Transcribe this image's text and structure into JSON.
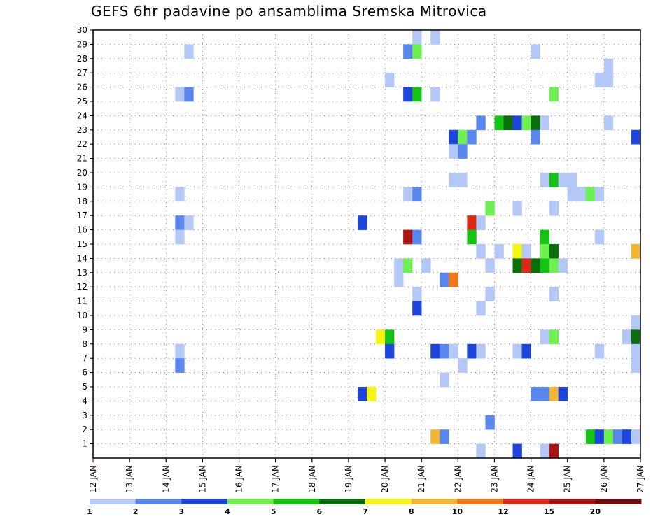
{
  "chart_data": {
    "type": "heatmap",
    "title": "GEFS 6hr padavine po ansamblima Sremska Mitrovica",
    "x_ticks": [
      "12 JAN",
      "13 JAN",
      "14 JAN",
      "15 JAN",
      "16 JAN",
      "17 JAN",
      "18 JAN",
      "19 JAN",
      "20 JAN",
      "21 JAN",
      "22 JAN",
      "23 JAN",
      "24 JAN",
      "25 JAN",
      "26 JAN",
      "27 JAN"
    ],
    "y_ticks": [
      "1",
      "2",
      "3",
      "4",
      "5",
      "6",
      "7",
      "8",
      "9",
      "10",
      "11",
      "12",
      "13",
      "14",
      "15",
      "16",
      "17",
      "18",
      "19",
      "20",
      "21",
      "22",
      "23",
      "24",
      "25",
      "26",
      "27",
      "28",
      "29",
      "30"
    ],
    "xlim": [
      "12 JAN",
      "27 JAN"
    ],
    "ylim": [
      0,
      30
    ],
    "time_step_hours": 6,
    "grid": true,
    "colorbar": {
      "placement": "bottom",
      "labels": [
        "1",
        "2",
        "3",
        "4",
        "5",
        "6",
        "7",
        "8",
        "10",
        "12",
        "15",
        "20"
      ],
      "colors": [
        "#b4c8f8",
        "#5a87ee",
        "#1e46dc",
        "#6ef050",
        "#14c314",
        "#0a6e0a",
        "#f5f514",
        "#f5b432",
        "#f07814",
        "#dc2814",
        "#aa1414",
        "#6e0a0a"
      ]
    },
    "cells": [
      {
        "day": 20.75,
        "member": 30,
        "level": 1
      },
      {
        "day": 21.25,
        "member": 30,
        "level": 1
      },
      {
        "day": 14.5,
        "member": 29,
        "level": 1
      },
      {
        "day": 20.5,
        "member": 29,
        "level": 2
      },
      {
        "day": 20.75,
        "member": 29,
        "level": 4
      },
      {
        "day": 24,
        "member": 29,
        "level": 1
      },
      {
        "day": 26,
        "member": 28,
        "level": 1
      },
      {
        "day": 20,
        "member": 27,
        "level": 1
      },
      {
        "day": 25.75,
        "member": 27,
        "level": 1
      },
      {
        "day": 26,
        "member": 27,
        "level": 1
      },
      {
        "day": 14.25,
        "member": 26,
        "level": 1
      },
      {
        "day": 14.5,
        "member": 26,
        "level": 2
      },
      {
        "day": 20.5,
        "member": 26,
        "level": 3
      },
      {
        "day": 20.75,
        "member": 26,
        "level": 5
      },
      {
        "day": 21.25,
        "member": 26,
        "level": 1
      },
      {
        "day": 24.5,
        "member": 26,
        "level": 4
      },
      {
        "day": 22.5,
        "member": 24,
        "level": 2
      },
      {
        "day": 23,
        "member": 24,
        "level": 5
      },
      {
        "day": 23.25,
        "member": 24,
        "level": 6
      },
      {
        "day": 23.5,
        "member": 24,
        "level": 3
      },
      {
        "day": 23.75,
        "member": 24,
        "level": 4
      },
      {
        "day": 24,
        "member": 24,
        "level": 6
      },
      {
        "day": 24.25,
        "member": 24,
        "level": 1
      },
      {
        "day": 26,
        "member": 24,
        "level": 1
      },
      {
        "day": 21.75,
        "member": 23,
        "level": 3
      },
      {
        "day": 22,
        "member": 23,
        "level": 4
      },
      {
        "day": 22.25,
        "member": 23,
        "level": 2
      },
      {
        "day": 24,
        "member": 23,
        "level": 2
      },
      {
        "day": 26.75,
        "member": 23,
        "level": 3
      },
      {
        "day": 21.75,
        "member": 22,
        "level": 1
      },
      {
        "day": 22,
        "member": 22,
        "level": 2
      },
      {
        "day": 21.75,
        "member": 20,
        "level": 1
      },
      {
        "day": 22,
        "member": 20,
        "level": 1
      },
      {
        "day": 24.25,
        "member": 20,
        "level": 1
      },
      {
        "day": 24.5,
        "member": 20,
        "level": 5
      },
      {
        "day": 24.75,
        "member": 20,
        "level": 1
      },
      {
        "day": 25,
        "member": 20,
        "level": 1
      },
      {
        "day": 14.25,
        "member": 19,
        "level": 1
      },
      {
        "day": 20.5,
        "member": 19,
        "level": 1
      },
      {
        "day": 20.75,
        "member": 19,
        "level": 2
      },
      {
        "day": 25,
        "member": 19,
        "level": 1
      },
      {
        "day": 25.25,
        "member": 19,
        "level": 1
      },
      {
        "day": 25.5,
        "member": 19,
        "level": 4
      },
      {
        "day": 25.75,
        "member": 19,
        "level": 1
      },
      {
        "day": 22.75,
        "member": 18,
        "level": 4
      },
      {
        "day": 23.5,
        "member": 18,
        "level": 1
      },
      {
        "day": 24.5,
        "member": 18,
        "level": 1
      },
      {
        "day": 14.25,
        "member": 17,
        "level": 2
      },
      {
        "day": 14.5,
        "member": 17,
        "level": 1
      },
      {
        "day": 19.25,
        "member": 17,
        "level": 3
      },
      {
        "day": 22.25,
        "member": 17,
        "level": 10
      },
      {
        "day": 22.5,
        "member": 17,
        "level": 1
      },
      {
        "day": 14.25,
        "member": 16,
        "level": 1
      },
      {
        "day": 20.5,
        "member": 16,
        "level": 11
      },
      {
        "day": 20.75,
        "member": 16,
        "level": 2
      },
      {
        "day": 22.25,
        "member": 16,
        "level": 5
      },
      {
        "day": 24.25,
        "member": 16,
        "level": 5
      },
      {
        "day": 25.75,
        "member": 16,
        "level": 1
      },
      {
        "day": 22.5,
        "member": 15,
        "level": 1
      },
      {
        "day": 23,
        "member": 15,
        "level": 1
      },
      {
        "day": 23.5,
        "member": 15,
        "level": 7
      },
      {
        "day": 23.75,
        "member": 15,
        "level": 1
      },
      {
        "day": 24.25,
        "member": 15,
        "level": 4
      },
      {
        "day": 24.5,
        "member": 15,
        "level": 6
      },
      {
        "day": 26.75,
        "member": 15,
        "level": 8
      },
      {
        "day": 20.25,
        "member": 14,
        "level": 1
      },
      {
        "day": 20.5,
        "member": 14,
        "level": 4
      },
      {
        "day": 21,
        "member": 14,
        "level": 1
      },
      {
        "day": 22.75,
        "member": 14,
        "level": 1
      },
      {
        "day": 23.5,
        "member": 14,
        "level": 6
      },
      {
        "day": 23.75,
        "member": 14,
        "level": 10
      },
      {
        "day": 24,
        "member": 14,
        "level": 6
      },
      {
        "day": 24.25,
        "member": 14,
        "level": 5
      },
      {
        "day": 24.5,
        "member": 14,
        "level": 4
      },
      {
        "day": 24.75,
        "member": 14,
        "level": 1
      },
      {
        "day": 20.25,
        "member": 13,
        "level": 1
      },
      {
        "day": 21.5,
        "member": 13,
        "level": 2
      },
      {
        "day": 21.75,
        "member": 13,
        "level": 9
      },
      {
        "day": 20.75,
        "member": 12,
        "level": 1
      },
      {
        "day": 22.75,
        "member": 12,
        "level": 1
      },
      {
        "day": 24.5,
        "member": 12,
        "level": 1
      },
      {
        "day": 20.75,
        "member": 11,
        "level": 3
      },
      {
        "day": 22.5,
        "member": 11,
        "level": 1
      },
      {
        "day": 26.75,
        "member": 10,
        "level": 1
      },
      {
        "day": 19.75,
        "member": 9,
        "level": 7
      },
      {
        "day": 20,
        "member": 9,
        "level": 5
      },
      {
        "day": 24.25,
        "member": 9,
        "level": 1
      },
      {
        "day": 24.5,
        "member": 9,
        "level": 4
      },
      {
        "day": 26.5,
        "member": 9,
        "level": 1
      },
      {
        "day": 26.75,
        "member": 9,
        "level": 6
      },
      {
        "day": 14.25,
        "member": 8,
        "level": 1
      },
      {
        "day": 20,
        "member": 8,
        "level": 3
      },
      {
        "day": 21.25,
        "member": 8,
        "level": 3
      },
      {
        "day": 21.5,
        "member": 8,
        "level": 2
      },
      {
        "day": 21.75,
        "member": 8,
        "level": 1
      },
      {
        "day": 22.25,
        "member": 8,
        "level": 3
      },
      {
        "day": 22.5,
        "member": 8,
        "level": 1
      },
      {
        "day": 23.5,
        "member": 8,
        "level": 1
      },
      {
        "day": 23.75,
        "member": 8,
        "level": 3
      },
      {
        "day": 25.75,
        "member": 8,
        "level": 1
      },
      {
        "day": 26.75,
        "member": 8,
        "level": 1
      },
      {
        "day": 14.25,
        "member": 7,
        "level": 2
      },
      {
        "day": 22,
        "member": 7,
        "level": 1
      },
      {
        "day": 26.75,
        "member": 7,
        "level": 1
      },
      {
        "day": 21.5,
        "member": 6,
        "level": 1
      },
      {
        "day": 19.25,
        "member": 5,
        "level": 3
      },
      {
        "day": 19.5,
        "member": 5,
        "level": 7
      },
      {
        "day": 24,
        "member": 5,
        "level": 2
      },
      {
        "day": 24.25,
        "member": 5,
        "level": 2
      },
      {
        "day": 24.5,
        "member": 5,
        "level": 8
      },
      {
        "day": 24.75,
        "member": 5,
        "level": 3
      },
      {
        "day": 22.75,
        "member": 3,
        "level": 2
      },
      {
        "day": 21.25,
        "member": 2,
        "level": 8
      },
      {
        "day": 21.5,
        "member": 2,
        "level": 2
      },
      {
        "day": 25.5,
        "member": 2,
        "level": 5
      },
      {
        "day": 25.75,
        "member": 2,
        "level": 3
      },
      {
        "day": 26,
        "member": 2,
        "level": 4
      },
      {
        "day": 26.25,
        "member": 2,
        "level": 2
      },
      {
        "day": 26.5,
        "member": 2,
        "level": 3
      },
      {
        "day": 26.75,
        "member": 2,
        "level": 1
      },
      {
        "day": 22.5,
        "member": 1,
        "level": 1
      },
      {
        "day": 23.5,
        "member": 1,
        "level": 3
      },
      {
        "day": 24.25,
        "member": 1,
        "level": 1
      },
      {
        "day": 24.5,
        "member": 1,
        "level": 11
      }
    ]
  }
}
